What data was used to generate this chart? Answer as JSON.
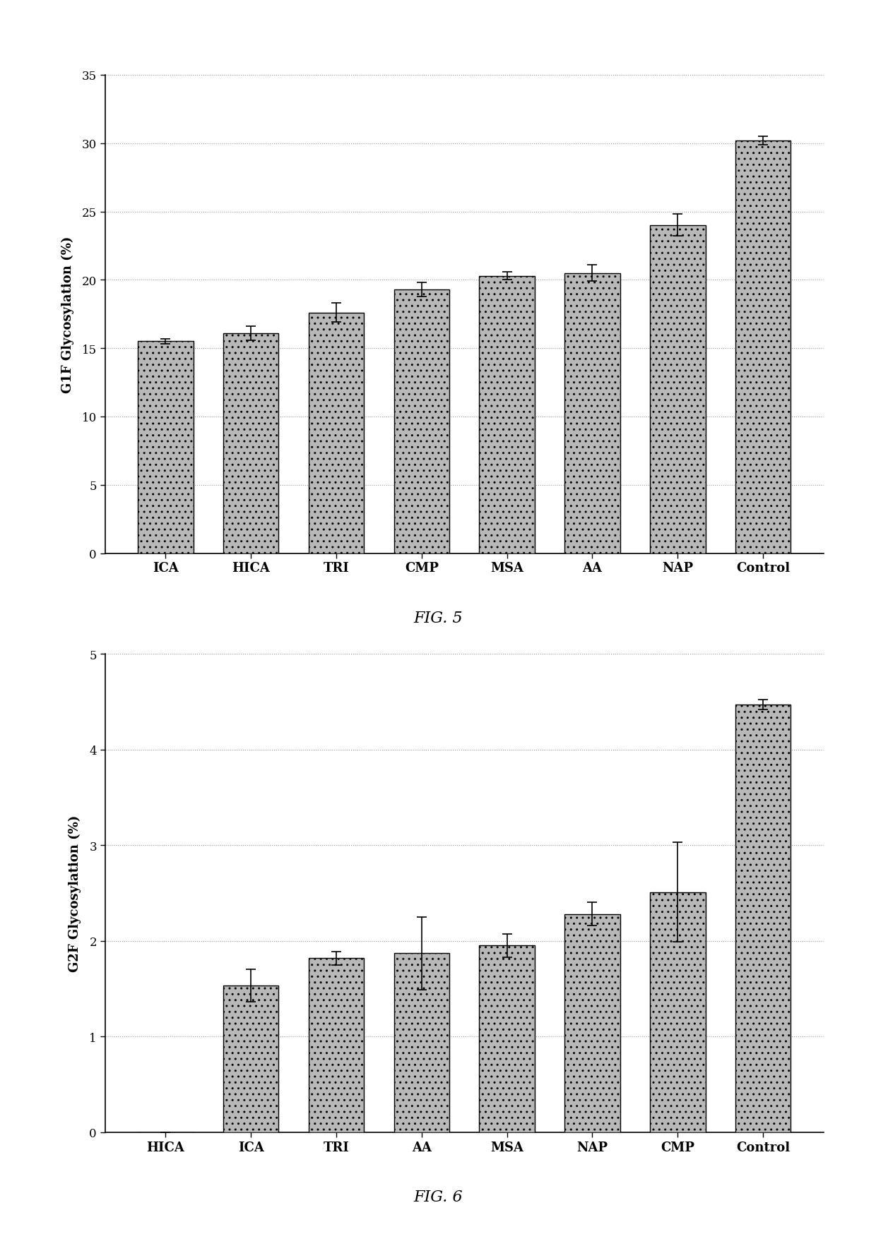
{
  "fig1": {
    "categories": [
      "ICA",
      "HICA",
      "TRI",
      "CMP",
      "MSA",
      "AA",
      "NAP",
      "Control"
    ],
    "values": [
      15.5,
      16.1,
      17.6,
      19.3,
      20.3,
      20.5,
      24.0,
      30.2
    ],
    "errors": [
      0.2,
      0.5,
      0.7,
      0.5,
      0.3,
      0.6,
      0.8,
      0.3
    ],
    "ylabel": "G1F Glycosylation (%)",
    "ylim": [
      0,
      35
    ],
    "yticks": [
      0,
      5,
      10,
      15,
      20,
      25,
      30,
      35
    ],
    "caption": "FIG. 5"
  },
  "fig2": {
    "categories": [
      "HICA",
      "ICA",
      "TRI",
      "AA",
      "MSA",
      "NAP",
      "CMP",
      "Control"
    ],
    "values": [
      0.0,
      1.53,
      1.82,
      1.87,
      1.95,
      2.28,
      2.51,
      4.47
    ],
    "errors": [
      0.0,
      0.17,
      0.07,
      0.38,
      0.12,
      0.12,
      0.52,
      0.05
    ],
    "ylabel": "G2F Glycosylation (%)",
    "ylim": [
      0,
      5
    ],
    "yticks": [
      0,
      1,
      2,
      3,
      4,
      5
    ],
    "caption": "FIG. 6"
  },
  "bar_color": "#b8b8b8",
  "bar_edgecolor": "#000000",
  "background_color": "#ffffff",
  "grid_color": "#999999",
  "grid_linestyle": ":",
  "bar_width": 0.65,
  "figsize": [
    12.4,
    17.83
  ],
  "dpi": 100
}
